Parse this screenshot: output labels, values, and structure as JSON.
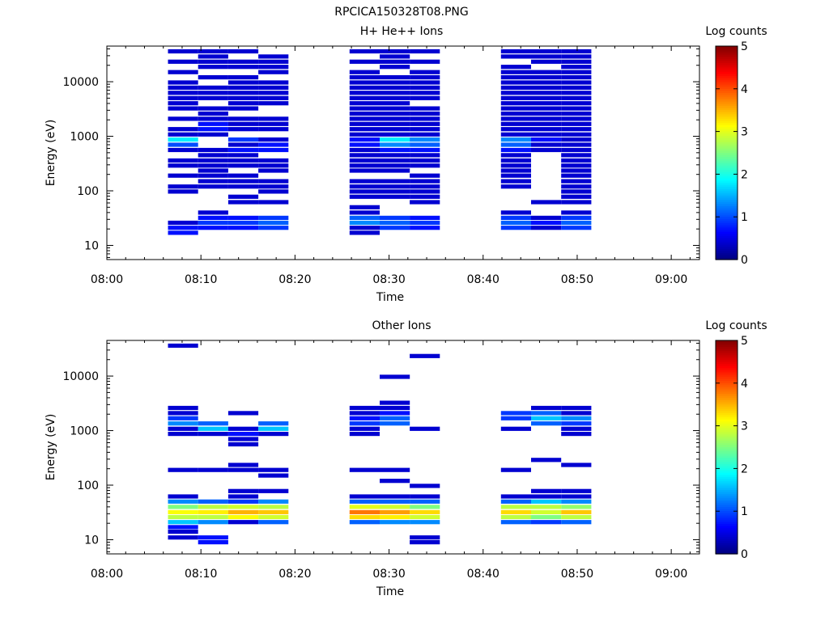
{
  "page_title": "RPCICA150328T08.PNG",
  "chart_data": [
    {
      "type": "heatmap",
      "title": "H+ He++ Ions",
      "xlabel": "Time",
      "ylabel": "Energy (eV)",
      "xticks": [
        "08:00",
        "08:10",
        "08:20",
        "08:30",
        "08:40",
        "08:50",
        "09:00"
      ],
      "xlim": [
        "08:00",
        "09:03"
      ],
      "yscale": "log",
      "ylim": [
        5.5,
        45000
      ],
      "yticks": [
        "10",
        "100",
        "1000",
        "10000"
      ],
      "colorbar": {
        "label": "Log counts",
        "min": 0,
        "max": 5,
        "ticks": [
          "0",
          "1",
          "2",
          "3",
          "4",
          "5"
        ]
      },
      "time_bins": [
        {
          "t0": "08:06.5",
          "t1": "08:09.7"
        },
        {
          "t0": "08:09.7",
          "t1": "08:12.9"
        },
        {
          "t0": "08:12.9",
          "t1": "08:16.1"
        },
        {
          "t0": "08:16.1",
          "t1": "08:19.3"
        },
        {
          "t0": "08:25.8",
          "t1": "08:29.0"
        },
        {
          "t0": "08:29.0",
          "t1": "08:32.2"
        },
        {
          "t0": "08:32.2",
          "t1": "08:35.4"
        },
        {
          "t0": "08:41.9",
          "t1": "08:45.1"
        },
        {
          "t0": "08:45.1",
          "t1": "08:48.3"
        },
        {
          "t0": "08:48.3",
          "t1": "08:51.5"
        }
      ],
      "energy_bins_eV": [
        17,
        21,
        26,
        32,
        40,
        50,
        62,
        78,
        97,
        120,
        150,
        190,
        235,
        290,
        360,
        450,
        560,
        700,
        870,
        1080,
        1350,
        1680,
        2090,
        2600,
        3240,
        4030,
        5020,
        6250,
        7780,
        9690,
        12060,
        15010,
        18690,
        23270,
        28970,
        36070
      ],
      "counts_log": [
        [
          0.7,
          0.7,
          0.4,
          0.0,
          0.0,
          0.0,
          0.0,
          0.0,
          0.4,
          0.4,
          0.0,
          0.4,
          0.0,
          0.4,
          0.4,
          0.0,
          0.4,
          1.0,
          1.8,
          0.4,
          0.4,
          0.0,
          0.4,
          0.0,
          0.4,
          0.4,
          0.4,
          0.4,
          0.4,
          0.4,
          0.0,
          0.4,
          0.0,
          0.4,
          0.0,
          0.4
        ],
        [
          0.0,
          0.7,
          0.9,
          0.7,
          0.4,
          0.0,
          0.0,
          0.0,
          0.0,
          0.4,
          0.4,
          0.4,
          0.4,
          0.4,
          0.4,
          0.4,
          0.4,
          0.0,
          0.0,
          0.4,
          0.7,
          0.7,
          0.4,
          0.4,
          0.4,
          0.0,
          0.4,
          0.4,
          0.4,
          0.0,
          0.4,
          0.0,
          0.4,
          0.4,
          0.4,
          0.4
        ],
        [
          0.0,
          0.7,
          0.9,
          0.7,
          0.0,
          0.0,
          0.4,
          0.4,
          0.0,
          0.4,
          0.4,
          0.4,
          0.0,
          0.4,
          0.4,
          0.4,
          0.7,
          0.4,
          0.9,
          0.0,
          0.4,
          0.4,
          0.4,
          0.0,
          0.4,
          0.4,
          0.4,
          0.4,
          0.4,
          0.4,
          0.4,
          0.0,
          0.4,
          0.4,
          0.0,
          0.4
        ],
        [
          0.0,
          0.9,
          1.1,
          0.9,
          0.0,
          0.0,
          0.4,
          0.0,
          0.4,
          0.4,
          0.4,
          0.0,
          0.4,
          0.4,
          0.4,
          0.0,
          0.7,
          0.7,
          0.4,
          0.0,
          0.4,
          0.4,
          0.4,
          0.0,
          0.0,
          0.4,
          0.4,
          0.4,
          0.4,
          0.4,
          0.0,
          0.4,
          0.4,
          0.4,
          0.4,
          0.0
        ],
        [
          0.4,
          0.4,
          1.3,
          1.1,
          0.4,
          0.4,
          0.0,
          0.4,
          0.4,
          0.4,
          0.4,
          0.0,
          0.4,
          0.4,
          0.4,
          0.4,
          0.4,
          0.7,
          0.7,
          0.4,
          0.4,
          0.4,
          0.4,
          0.4,
          0.4,
          0.4,
          0.4,
          0.4,
          0.4,
          0.4,
          0.4,
          0.4,
          0.0,
          0.4,
          0.0,
          0.4
        ],
        [
          0.0,
          0.9,
          1.1,
          0.9,
          0.0,
          0.0,
          0.0,
          0.4,
          0.4,
          0.4,
          0.4,
          0.0,
          0.4,
          0.4,
          0.4,
          0.4,
          0.7,
          1.3,
          1.8,
          0.4,
          0.4,
          0.4,
          0.4,
          0.4,
          0.4,
          0.4,
          0.4,
          0.4,
          0.4,
          0.4,
          0.4,
          0.0,
          0.4,
          0.4,
          0.4,
          0.4
        ],
        [
          0.0,
          0.7,
          0.9,
          0.7,
          0.0,
          0.0,
          0.4,
          0.4,
          0.4,
          0.4,
          0.4,
          0.4,
          0.0,
          0.4,
          0.4,
          0.4,
          0.7,
          1.1,
          1.3,
          0.4,
          0.4,
          0.4,
          0.4,
          0.4,
          0.4,
          0.0,
          0.4,
          0.4,
          0.4,
          0.4,
          0.4,
          0.4,
          0.0,
          0.4,
          0.0,
          0.4
        ],
        [
          0.0,
          0.9,
          1.1,
          0.9,
          0.4,
          0.0,
          0.0,
          0.0,
          0.0,
          0.4,
          0.4,
          0.4,
          0.4,
          0.4,
          0.4,
          0.4,
          0.7,
          1.1,
          1.3,
          0.4,
          0.4,
          0.4,
          0.4,
          0.4,
          0.4,
          0.4,
          0.4,
          0.4,
          0.4,
          0.4,
          0.4,
          0.4,
          0.4,
          0.0,
          0.4,
          0.4
        ],
        [
          0.0,
          0.4,
          0.7,
          0.4,
          0.0,
          0.0,
          0.4,
          0.0,
          0.0,
          0.0,
          0.0,
          0.0,
          0.0,
          0.0,
          0.0,
          0.0,
          0.4,
          0.4,
          0.7,
          0.4,
          0.4,
          0.4,
          0.4,
          0.4,
          0.4,
          0.4,
          0.4,
          0.4,
          0.4,
          0.4,
          0.4,
          0.4,
          0.0,
          0.4,
          0.4,
          0.4
        ],
        [
          0.0,
          0.9,
          1.1,
          0.9,
          0.4,
          0.0,
          0.4,
          0.4,
          0.4,
          0.4,
          0.4,
          0.4,
          0.4,
          0.4,
          0.4,
          0.4,
          0.4,
          0.4,
          0.4,
          0.4,
          0.4,
          0.4,
          0.4,
          0.4,
          0.4,
          0.4,
          0.4,
          0.4,
          0.4,
          0.4,
          0.4,
          0.4,
          0.4,
          0.4,
          0.4,
          0.4
        ]
      ]
    },
    {
      "type": "heatmap",
      "title": "Other Ions",
      "xlabel": "Time",
      "ylabel": "Energy (eV)",
      "xticks": [
        "08:00",
        "08:10",
        "08:20",
        "08:30",
        "08:40",
        "08:50",
        "09:00"
      ],
      "xlim": [
        "08:00",
        "09:03"
      ],
      "yscale": "log",
      "ylim": [
        5.5,
        45000
      ],
      "yticks": [
        "10",
        "100",
        "1000",
        "10000"
      ],
      "colorbar": {
        "label": "Log counts",
        "min": 0,
        "max": 5,
        "ticks": [
          "0",
          "1",
          "2",
          "3",
          "4",
          "5"
        ]
      },
      "time_bins": [
        {
          "t0": "08:06.5",
          "t1": "08:09.7"
        },
        {
          "t0": "08:09.7",
          "t1": "08:12.9"
        },
        {
          "t0": "08:12.9",
          "t1": "08:16.1"
        },
        {
          "t0": "08:16.1",
          "t1": "08:19.3"
        },
        {
          "t0": "08:25.8",
          "t1": "08:29.0"
        },
        {
          "t0": "08:29.0",
          "t1": "08:32.2"
        },
        {
          "t0": "08:32.2",
          "t1": "08:35.4"
        },
        {
          "t0": "08:41.9",
          "t1": "08:45.1"
        },
        {
          "t0": "08:45.1",
          "t1": "08:48.3"
        },
        {
          "t0": "08:48.3",
          "t1": "08:51.5"
        }
      ],
      "energy_bins_eV": [
        9,
        11,
        14,
        17,
        21,
        26,
        32,
        40,
        50,
        62,
        78,
        97,
        120,
        150,
        190,
        235,
        290,
        360,
        450,
        560,
        700,
        870,
        1080,
        1350,
        1680,
        2090,
        2600,
        3240,
        4030,
        5020,
        6250,
        7780,
        9690,
        12060,
        15010,
        18690,
        23270,
        28970,
        36070
      ],
      "counts_log": [
        [
          0.0,
          0.4,
          0.4,
          0.7,
          1.6,
          2.8,
          3.1,
          2.5,
          1.3,
          0.4,
          0.0,
          0.0,
          0.0,
          0.0,
          0.4,
          0.0,
          0.0,
          0.0,
          0.0,
          0.0,
          0.0,
          0.4,
          0.4,
          1.3,
          0.9,
          0.4,
          0.4,
          0.0,
          0.0,
          0.0,
          0.0,
          0.0,
          0.0,
          0.0,
          0.0,
          0.0,
          0.0,
          0.0,
          0.4
        ],
        [
          0.7,
          0.7,
          0.0,
          0.0,
          1.3,
          2.8,
          3.2,
          2.8,
          1.1,
          0.0,
          0.0,
          0.0,
          0.0,
          0.0,
          0.4,
          0.0,
          0.0,
          0.0,
          0.0,
          0.0,
          0.0,
          0.4,
          1.6,
          1.1,
          0.0,
          0.0,
          0.0,
          0.0,
          0.0,
          0.0,
          0.0,
          0.0,
          0.0,
          0.0,
          0.0,
          0.0,
          0.0,
          0.0,
          0.0
        ],
        [
          0.0,
          0.0,
          0.0,
          0.0,
          0.4,
          3.1,
          3.5,
          2.9,
          0.9,
          0.4,
          0.4,
          0.0,
          0.0,
          0.0,
          0.4,
          0.4,
          0.0,
          0.0,
          0.0,
          0.4,
          0.4,
          0.7,
          0.4,
          0.0,
          0.0,
          0.4,
          0.0,
          0.0,
          0.0,
          0.0,
          0.0,
          0.0,
          0.0,
          0.0,
          0.0,
          0.0,
          0.0,
          0.0,
          0.0
        ],
        [
          0.0,
          0.0,
          0.0,
          0.0,
          1.1,
          2.9,
          3.4,
          2.8,
          1.3,
          0.0,
          0.4,
          0.0,
          0.0,
          0.4,
          0.4,
          0.0,
          0.0,
          0.0,
          0.0,
          0.0,
          0.0,
          0.4,
          1.6,
          1.1,
          0.0,
          0.0,
          0.0,
          0.0,
          0.0,
          0.0,
          0.0,
          0.0,
          0.0,
          0.0,
          0.0,
          0.0,
          0.0,
          0.0,
          0.0
        ],
        [
          0.0,
          0.0,
          0.0,
          0.0,
          1.1,
          3.3,
          3.8,
          3.0,
          1.1,
          0.4,
          0.0,
          0.0,
          0.0,
          0.0,
          0.4,
          0.0,
          0.0,
          0.0,
          0.0,
          0.0,
          0.0,
          0.4,
          0.4,
          0.9,
          0.7,
          0.4,
          0.4,
          0.0,
          0.0,
          0.0,
          0.0,
          0.0,
          0.0,
          0.0,
          0.0,
          0.0,
          0.0,
          0.0,
          0.0
        ],
        [
          0.0,
          0.0,
          0.0,
          0.0,
          1.3,
          3.2,
          3.6,
          2.9,
          1.1,
          0.4,
          0.0,
          0.0,
          0.4,
          0.0,
          0.4,
          0.0,
          0.0,
          0.0,
          0.0,
          0.0,
          0.0,
          0.0,
          0.0,
          1.1,
          1.1,
          0.7,
          0.4,
          0.4,
          0.0,
          0.0,
          0.0,
          0.0,
          0.4,
          0.0,
          0.0,
          0.0,
          0.0,
          0.0,
          0.0
        ],
        [
          0.4,
          0.4,
          0.0,
          0.0,
          1.3,
          2.9,
          3.3,
          2.5,
          1.1,
          0.4,
          0.0,
          0.4,
          0.0,
          0.0,
          0.0,
          0.0,
          0.0,
          0.0,
          0.0,
          0.0,
          0.0,
          0.0,
          0.4,
          0.0,
          0.0,
          0.0,
          0.0,
          0.0,
          0.0,
          0.0,
          0.0,
          0.0,
          0.0,
          0.0,
          0.0,
          0.0,
          0.4,
          0.0,
          0.0
        ],
        [
          0.0,
          0.0,
          0.0,
          0.0,
          1.1,
          2.8,
          3.3,
          2.8,
          1.1,
          0.4,
          0.0,
          0.0,
          0.0,
          0.0,
          0.4,
          0.0,
          0.0,
          0.0,
          0.0,
          0.0,
          0.0,
          0.0,
          0.4,
          0.0,
          0.9,
          0.9,
          0.0,
          0.0,
          0.0,
          0.0,
          0.0,
          0.0,
          0.0,
          0.0,
          0.0,
          0.0,
          0.0,
          0.0,
          0.0
        ],
        [
          0.0,
          0.0,
          0.0,
          0.0,
          0.9,
          2.5,
          2.9,
          2.8,
          1.6,
          0.4,
          0.4,
          0.0,
          0.0,
          0.0,
          0.0,
          0.0,
          0.4,
          0.0,
          0.0,
          0.0,
          0.0,
          0.0,
          0.0,
          1.1,
          1.6,
          1.1,
          0.4,
          0.0,
          0.0,
          0.0,
          0.0,
          0.0,
          0.0,
          0.0,
          0.0,
          0.0,
          0.0,
          0.0,
          0.0
        ],
        [
          0.0,
          0.0,
          0.0,
          0.0,
          1.1,
          2.8,
          3.4,
          2.6,
          1.3,
          0.4,
          0.4,
          0.0,
          0.0,
          0.0,
          0.0,
          0.4,
          0.0,
          0.0,
          0.0,
          0.0,
          0.0,
          0.4,
          0.4,
          0.9,
          1.3,
          0.4,
          0.4,
          0.0,
          0.0,
          0.0,
          0.0,
          0.0,
          0.0,
          0.0,
          0.0,
          0.0,
          0.0,
          0.0,
          0.0
        ]
      ]
    }
  ]
}
